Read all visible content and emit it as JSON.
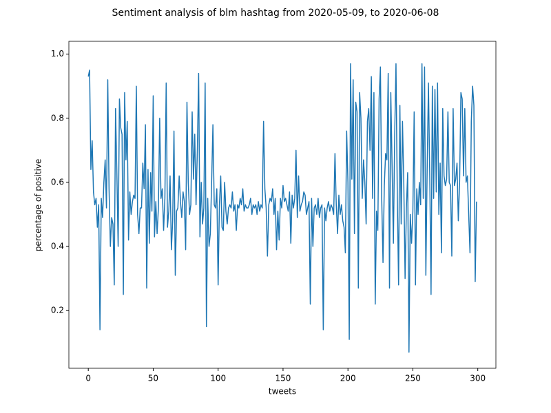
{
  "chart_data": {
    "type": "line",
    "title": "Sentiment analysis of blm hashtag from 2020-05-09, to 2020-06-08",
    "xlabel": "tweets",
    "ylabel": "percentage of positive",
    "color": "#1f77b4",
    "x": [
      0,
      1,
      2,
      3,
      4,
      5,
      6,
      7,
      8,
      9,
      10,
      11,
      12,
      13,
      14,
      15,
      16,
      17,
      18,
      19,
      20,
      21,
      22,
      23,
      24,
      25,
      26,
      27,
      28,
      29,
      30,
      31,
      32,
      33,
      34,
      35,
      36,
      37,
      38,
      39,
      40,
      41,
      42,
      43,
      44,
      45,
      46,
      47,
      48,
      49,
      50,
      51,
      52,
      53,
      54,
      55,
      56,
      57,
      58,
      59,
      60,
      61,
      62,
      63,
      64,
      65,
      66,
      67,
      68,
      69,
      70,
      71,
      72,
      73,
      74,
      75,
      76,
      77,
      78,
      79,
      80,
      81,
      82,
      83,
      84,
      85,
      86,
      87,
      88,
      89,
      90,
      91,
      92,
      93,
      94,
      95,
      96,
      97,
      98,
      99,
      100,
      101,
      102,
      103,
      104,
      105,
      106,
      107,
      108,
      109,
      110,
      111,
      112,
      113,
      114,
      115,
      116,
      117,
      118,
      119,
      120,
      121,
      122,
      123,
      124,
      125,
      126,
      127,
      128,
      129,
      130,
      131,
      132,
      133,
      134,
      135,
      136,
      137,
      138,
      139,
      140,
      141,
      142,
      143,
      144,
      145,
      146,
      147,
      148,
      149,
      150,
      151,
      152,
      153,
      154,
      155,
      156,
      157,
      158,
      159,
      160,
      161,
      162,
      163,
      164,
      165,
      166,
      167,
      168,
      169,
      170,
      171,
      172,
      173,
      174,
      175,
      176,
      177,
      178,
      179,
      180,
      181,
      182,
      183,
      184,
      185,
      186,
      187,
      188,
      189,
      190,
      191,
      192,
      193,
      194,
      195,
      196,
      197,
      198,
      199,
      200,
      201,
      202,
      203,
      204,
      205,
      206,
      207,
      208,
      209,
      210,
      211,
      212,
      213,
      214,
      215,
      216,
      217,
      218,
      219,
      220,
      221,
      222,
      223,
      224,
      225,
      226,
      227,
      228,
      229,
      230,
      231,
      232,
      233,
      234,
      235,
      236,
      237,
      238,
      239,
      240,
      241,
      242,
      243,
      244,
      245,
      246,
      247,
      248,
      249,
      250,
      251,
      252,
      253,
      254,
      255,
      256,
      257,
      258,
      259,
      260,
      261,
      262,
      263,
      264,
      265,
      266,
      267,
      268,
      269,
      270,
      271,
      272,
      273,
      274,
      275,
      276,
      277,
      278,
      279,
      280,
      281,
      282,
      283,
      284,
      285,
      286,
      287,
      288,
      289,
      290,
      291,
      292,
      293,
      294,
      295,
      296,
      297,
      298,
      299
    ],
    "values": [
      0.93,
      0.95,
      0.64,
      0.73,
      0.57,
      0.53,
      0.55,
      0.46,
      0.53,
      0.14,
      0.55,
      0.49,
      0.6,
      0.67,
      0.52,
      0.92,
      0.58,
      0.4,
      0.49,
      0.47,
      0.28,
      0.83,
      0.63,
      0.4,
      0.86,
      0.77,
      0.75,
      0.25,
      0.88,
      0.67,
      0.79,
      0.42,
      0.57,
      0.5,
      0.54,
      0.56,
      0.55,
      0.9,
      0.5,
      0.44,
      0.52,
      0.52,
      0.66,
      0.58,
      0.78,
      0.27,
      0.64,
      0.41,
      0.63,
      0.51,
      0.87,
      0.43,
      0.54,
      0.44,
      0.52,
      0.8,
      0.55,
      0.58,
      0.45,
      0.55,
      0.91,
      0.46,
      0.51,
      0.62,
      0.39,
      0.48,
      0.76,
      0.31,
      0.51,
      0.52,
      0.62,
      0.54,
      0.49,
      0.57,
      0.54,
      0.39,
      0.85,
      0.6,
      0.5,
      0.53,
      0.82,
      0.61,
      0.75,
      0.53,
      0.7,
      0.94,
      0.43,
      0.6,
      0.47,
      0.52,
      0.91,
      0.15,
      0.55,
      0.4,
      0.44,
      0.6,
      0.78,
      0.53,
      0.52,
      0.58,
      0.28,
      0.53,
      0.62,
      0.46,
      0.45,
      0.6,
      0.51,
      0.47,
      0.52,
      0.53,
      0.52,
      0.57,
      0.51,
      0.53,
      0.45,
      0.53,
      0.52,
      0.55,
      0.53,
      0.58,
      0.51,
      0.53,
      0.52,
      0.52,
      0.53,
      0.55,
      0.5,
      0.53,
      0.52,
      0.53,
      0.5,
      0.54,
      0.51,
      0.53,
      0.52,
      0.79,
      0.58,
      0.52,
      0.37,
      0.53,
      0.55,
      0.54,
      0.58,
      0.5,
      0.55,
      0.39,
      0.51,
      0.42,
      0.55,
      0.52,
      0.59,
      0.54,
      0.55,
      0.53,
      0.51,
      0.57,
      0.41,
      0.56,
      0.52,
      0.55,
      0.7,
      0.49,
      0.62,
      0.51,
      0.53,
      0.54,
      0.57,
      0.56,
      0.5,
      0.52,
      0.54,
      0.22,
      0.55,
      0.4,
      0.52,
      0.53,
      0.5,
      0.55,
      0.49,
      0.52,
      0.53,
      0.14,
      0.52,
      0.48,
      0.52,
      0.54,
      0.51,
      0.53,
      0.52,
      0.5,
      0.69,
      0.53,
      0.44,
      0.56,
      0.5,
      0.53,
      0.48,
      0.46,
      0.38,
      0.76,
      0.6,
      0.11,
      0.97,
      0.61,
      0.92,
      0.44,
      0.85,
      0.82,
      0.27,
      0.88,
      0.8,
      0.55,
      0.67,
      0.6,
      0.47,
      0.79,
      0.83,
      0.7,
      0.93,
      0.55,
      0.88,
      0.22,
      0.51,
      0.45,
      0.86,
      0.96,
      0.55,
      0.35,
      0.59,
      0.69,
      0.67,
      0.94,
      0.27,
      0.88,
      0.65,
      0.41,
      0.75,
      0.97,
      0.56,
      0.28,
      0.84,
      0.47,
      0.79,
      0.6,
      0.3,
      0.52,
      0.63,
      0.07,
      0.5,
      0.41,
      0.51,
      0.82,
      0.28,
      0.58,
      0.5,
      0.6,
      0.53,
      0.97,
      0.55,
      0.96,
      0.31,
      0.64,
      0.91,
      0.62,
      0.25,
      0.9,
      0.55,
      0.89,
      0.57,
      0.91,
      0.5,
      0.66,
      0.38,
      0.83,
      0.62,
      0.59,
      0.61,
      0.82,
      0.6,
      0.59,
      0.37,
      0.83,
      0.59,
      0.61,
      0.66,
      0.48,
      0.6,
      0.88,
      0.86,
      0.62,
      0.83,
      0.6,
      0.62,
      0.5,
      0.38,
      0.79,
      0.9,
      0.84,
      0.29,
      0.54
    ],
    "xlim": [
      -14.95,
      313.95
    ],
    "xticks": [
      0,
      50,
      100,
      150,
      200,
      250,
      300
    ],
    "ylim": [
      0.02,
      1.04
    ],
    "yticks": [
      0.2,
      0.4,
      0.6,
      0.8,
      {
        "value": 1,
        "label": "1.0"
      }
    ]
  }
}
